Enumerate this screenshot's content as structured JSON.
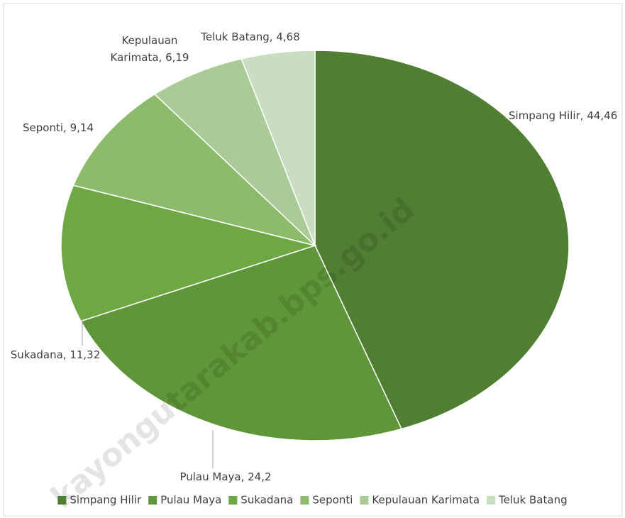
{
  "chart_data": {
    "type": "pie",
    "categories": [
      "Simpang Hilir",
      "Pulau Maya",
      "Sukadana",
      "Seponti",
      "Kepulauan Karimata",
      "Teluk Batang"
    ],
    "values": [
      44.46,
      24.2,
      11.32,
      9.14,
      6.19,
      4.68
    ],
    "value_labels": [
      "44,46",
      "24,2",
      "11,32",
      "9,14",
      "6,19",
      "4,68"
    ],
    "colors": [
      "#507e32",
      "#5f9639",
      "#6ea843",
      "#8cbb6c",
      "#aacb97",
      "#c9ddc0"
    ],
    "legend": "bottom"
  },
  "watermark": "kayongutarakab.bps.go.id"
}
